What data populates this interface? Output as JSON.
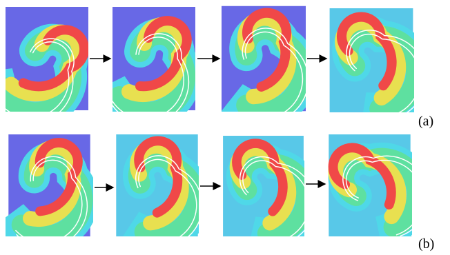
{
  "figure": {
    "row_labels": [
      "(a)",
      "(b)"
    ]
  }
}
